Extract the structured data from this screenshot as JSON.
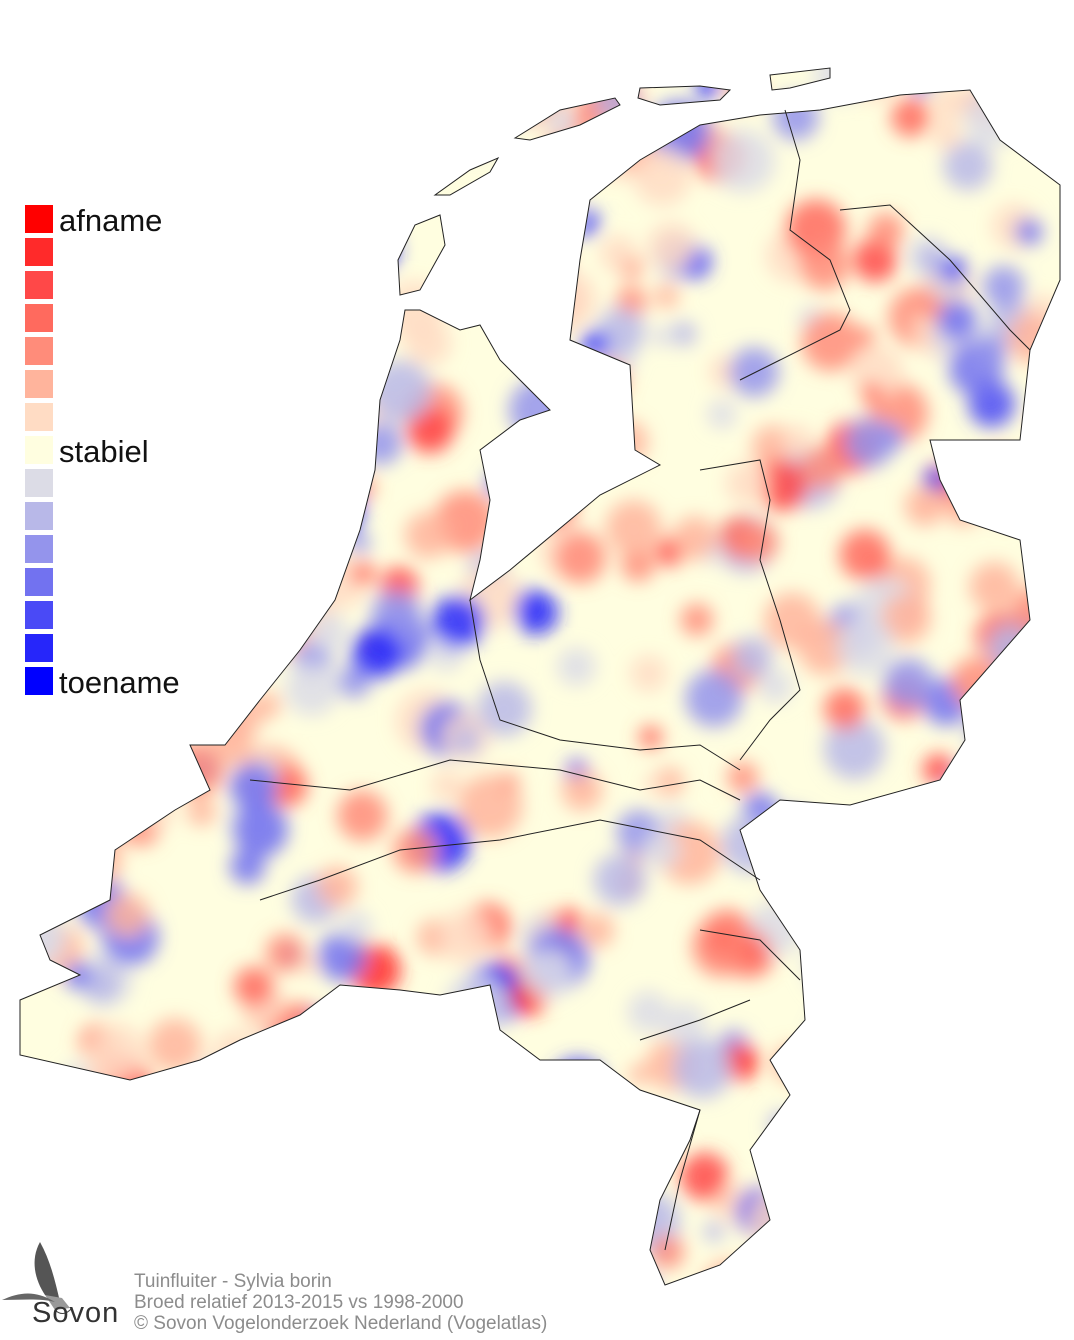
{
  "legend": {
    "top_label": "afname",
    "middle_label": "stabiel",
    "bottom_label": "toename",
    "colors": [
      "#ff0000",
      "#ff2a2a",
      "#ff4848",
      "#ff6a5e",
      "#ff8c7a",
      "#ffb49c",
      "#ffdcc4",
      "#fffee0",
      "#dcdce6",
      "#b8b8e8",
      "#9494ec",
      "#7272f0",
      "#4a4af6",
      "#2626fa",
      "#0000ff"
    ]
  },
  "caption": {
    "species": "Tuinfluiter - Sylvia borin",
    "period": "Broed relatief 2013-2015 vs 1998-2000",
    "copyright": "© Sovon Vogelonderzoek Nederland (Vogelatlas)"
  },
  "logo": {
    "text": "Sovon",
    "icon": "swallow-icon"
  }
}
